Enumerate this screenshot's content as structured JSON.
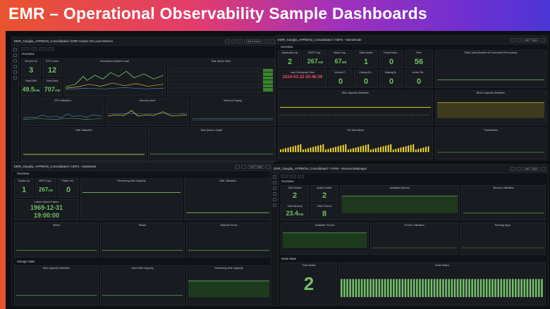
{
  "title": "EMR – Operational Observability Sample Dashboards",
  "colors": {
    "green": "#73bf69",
    "red": "#f2495c",
    "orange": "#ff9830",
    "panel": "#181b1f"
  },
  "dash1": {
    "title": "EMR_Ganglia_APPMON_Consolidated / EMR Cluster OS Level Metrics",
    "timepicker": "Last 6 hours",
    "section": "Overview",
    "servers_up": {
      "label": "Servers Up",
      "value": "3"
    },
    "cpu_cores": {
      "label": "CPU Cores",
      "value": "12"
    },
    "total_ram": {
      "label": "Total RAM",
      "value": "49.5",
      "unit": "GB"
    },
    "total_disks": {
      "label": "Total Disks",
      "value": "707",
      "unit": "GB"
    },
    "panels": [
      "Normalized System Load",
      "Disk Space Used",
      "CPU Utilization",
      "Memory Used",
      "Memory Paging",
      "Disk Utilization",
      "Disk Queue Length"
    ]
  },
  "dash2": {
    "title": "EMR_Ganglia_APPMON_Consolidated / HDFS - NameNode",
    "timepicker": "Last 7 days",
    "section": "Overview",
    "stats": [
      {
        "label": "Datanodes Up",
        "value": "2",
        "cls": "g"
      },
      {
        "label": "HDFS Cap...",
        "value": "267",
        "unit": "GB",
        "cls": "g"
      },
      {
        "label": "Block Cap...",
        "value": "67",
        "unit": "Mil",
        "cls": "g"
      },
      {
        "label": "Data Nodes",
        "value": "1",
        "cls": "g"
      },
      {
        "label": "Dead Node...",
        "value": "0",
        "cls": "g"
      },
      {
        "label": "Files",
        "value": "56",
        "cls": "g"
      },
      {
        "label": "Last Checkpoint Time",
        "value": "2024-03-22 00:46:39",
        "cls": "r"
      },
      {
        "label": "Volume F...",
        "value": "0",
        "cls": "g"
      },
      {
        "label": "Corrupt Bl...",
        "value": "0",
        "cls": "g"
      },
      {
        "label": "Missing B...",
        "value": "0",
        "cls": "g"
      },
      {
        "label": "Under Re...",
        "value": "0",
        "cls": "g"
      }
    ],
    "panels": [
      "Total Load (Number of Concurrent File Access)",
      "Disk Capacity Utilization",
      "Block Capacity Utilization",
      "File Operations",
      "Transactions"
    ]
  },
  "dash3": {
    "title": "EMR_Ganglia_APPMON_Consolidated / HDFS - DataNode",
    "timepicker": "Last 7 days",
    "section": "Overview",
    "nodes_up": {
      "label": "Nodes Up",
      "value": "1"
    },
    "hdfs_cap": {
      "label": "HDFS Cap...",
      "value": "267",
      "unit": "GB"
    },
    "failed_vol": {
      "label": "Failed Vol...",
      "value": "0"
    },
    "latest_failure_label": "Latest Volume Failure",
    "latest_failure_date": "1969-12-31",
    "latest_failure_time": "19:00:00",
    "section2": "Storage Stats",
    "panels": [
      "Remaining Disk Capacity",
      "Disk Utilization",
      "Writes",
      "Reads",
      "Network Errors",
      "Disk Capacity Utilization",
      "Used Disk Capacity",
      "Remaining Disk Capacity"
    ]
  },
  "dash4": {
    "title": "EMR_Ganglia_APPMON_Consolidated / YARN - ResourceManager",
    "timepicker": "Last 7 days",
    "section": "Overview",
    "total_nodes": {
      "label": "Total Nodes",
      "value": "2"
    },
    "active_nodes": {
      "label": "Active Nodes",
      "value": "2"
    },
    "total_memory": {
      "label": "Total Memory",
      "value": "23.4",
      "unit": "GB"
    },
    "total_vcores": {
      "label": "Total VCores",
      "value": "8"
    },
    "section2": "Node Stats",
    "total_nodes2": {
      "label": "Total Nodes",
      "value": "2"
    },
    "panels": [
      "Available Memory",
      "Memory Utilization",
      "Available VCores",
      "VCores Utilization",
      "Running Apps",
      "Node Status"
    ]
  }
}
